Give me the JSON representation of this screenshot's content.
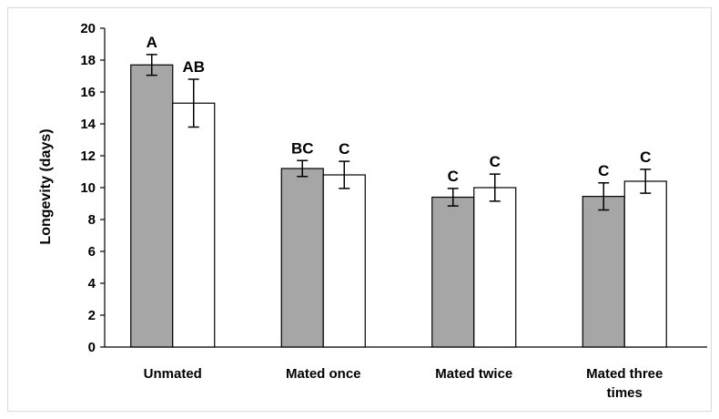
{
  "chart_data": {
    "type": "bar",
    "title": "",
    "xlabel": "",
    "ylabel": "Longevity (days)",
    "ylim": [
      0,
      20
    ],
    "yticks": [
      0,
      2,
      4,
      6,
      8,
      10,
      12,
      14,
      16,
      18,
      20
    ],
    "grid": false,
    "legend": "none",
    "categories": [
      [
        "Unmated"
      ],
      [
        "Mated once"
      ],
      [
        "Mated twice"
      ],
      [
        "Mated three",
        "times"
      ]
    ],
    "series": [
      {
        "color": "#a6a6a6",
        "values": [
          17.7,
          11.2,
          9.4,
          9.45
        ],
        "errors": [
          0.65,
          0.5,
          0.55,
          0.85
        ],
        "labels": [
          "A",
          "BC",
          "C",
          "C"
        ]
      },
      {
        "color": "#ffffff",
        "values": [
          15.3,
          10.8,
          10.0,
          10.4
        ],
        "errors": [
          1.5,
          0.85,
          0.85,
          0.75
        ],
        "labels": [
          "AB",
          "C",
          "C",
          "C"
        ]
      }
    ]
  }
}
